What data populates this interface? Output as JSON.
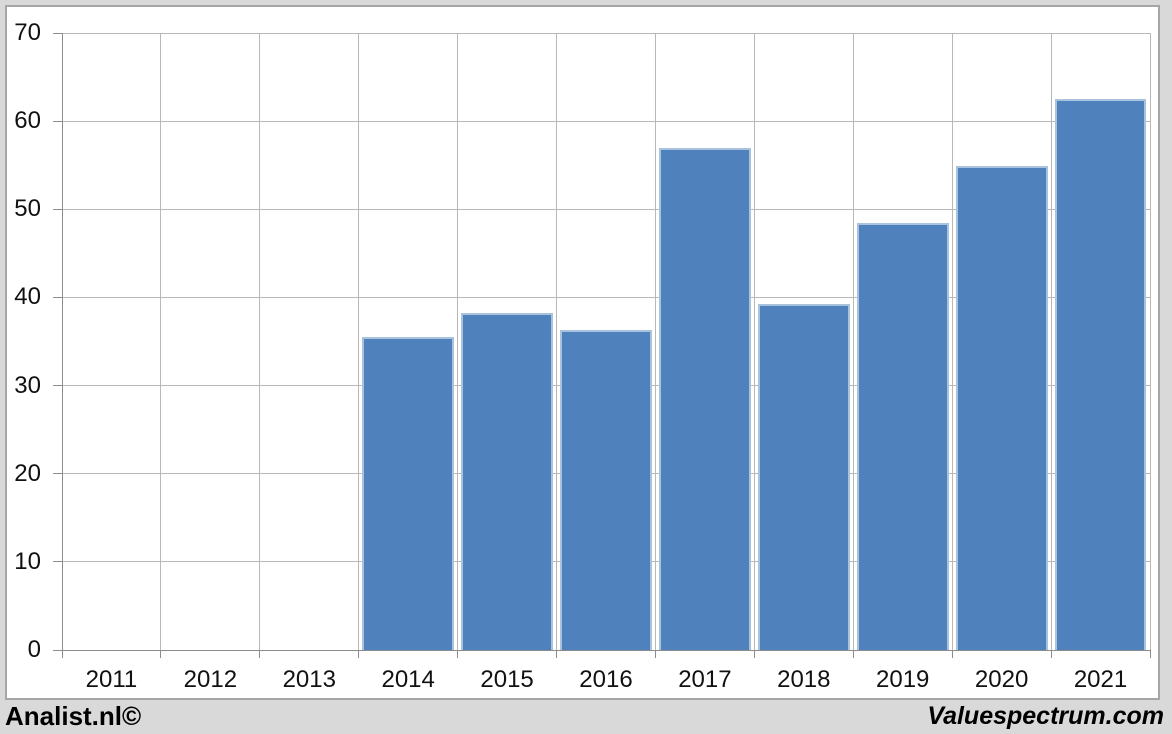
{
  "page": {
    "background_color": "#d9d9d9",
    "panel_background": "#ffffff",
    "panel_border_color": "#a6a6a6"
  },
  "chart_data": {
    "type": "bar",
    "title": "",
    "xlabel": "",
    "ylabel": "",
    "categories": [
      "2011",
      "2012",
      "2013",
      "2014",
      "2015",
      "2016",
      "2017",
      "2018",
      "2019",
      "2020",
      "2021"
    ],
    "values": [
      null,
      null,
      null,
      35.5,
      38.2,
      36.3,
      56.9,
      39.2,
      48.5,
      54.9,
      62.5
    ],
    "ylim": [
      0,
      70
    ],
    "yticks": [
      0,
      10,
      20,
      30,
      40,
      50,
      60,
      70
    ],
    "grid": "both",
    "legend": "none",
    "bar_color": "#4f81bd",
    "bar_border_color": "#a9c2de",
    "gridline_color": "#b8b8b8",
    "axis_color": "#8c8c8c",
    "label_color": "#111111"
  },
  "footer": {
    "left_text": "Analist.nl©",
    "right_text": "Valuespectrum.com"
  }
}
